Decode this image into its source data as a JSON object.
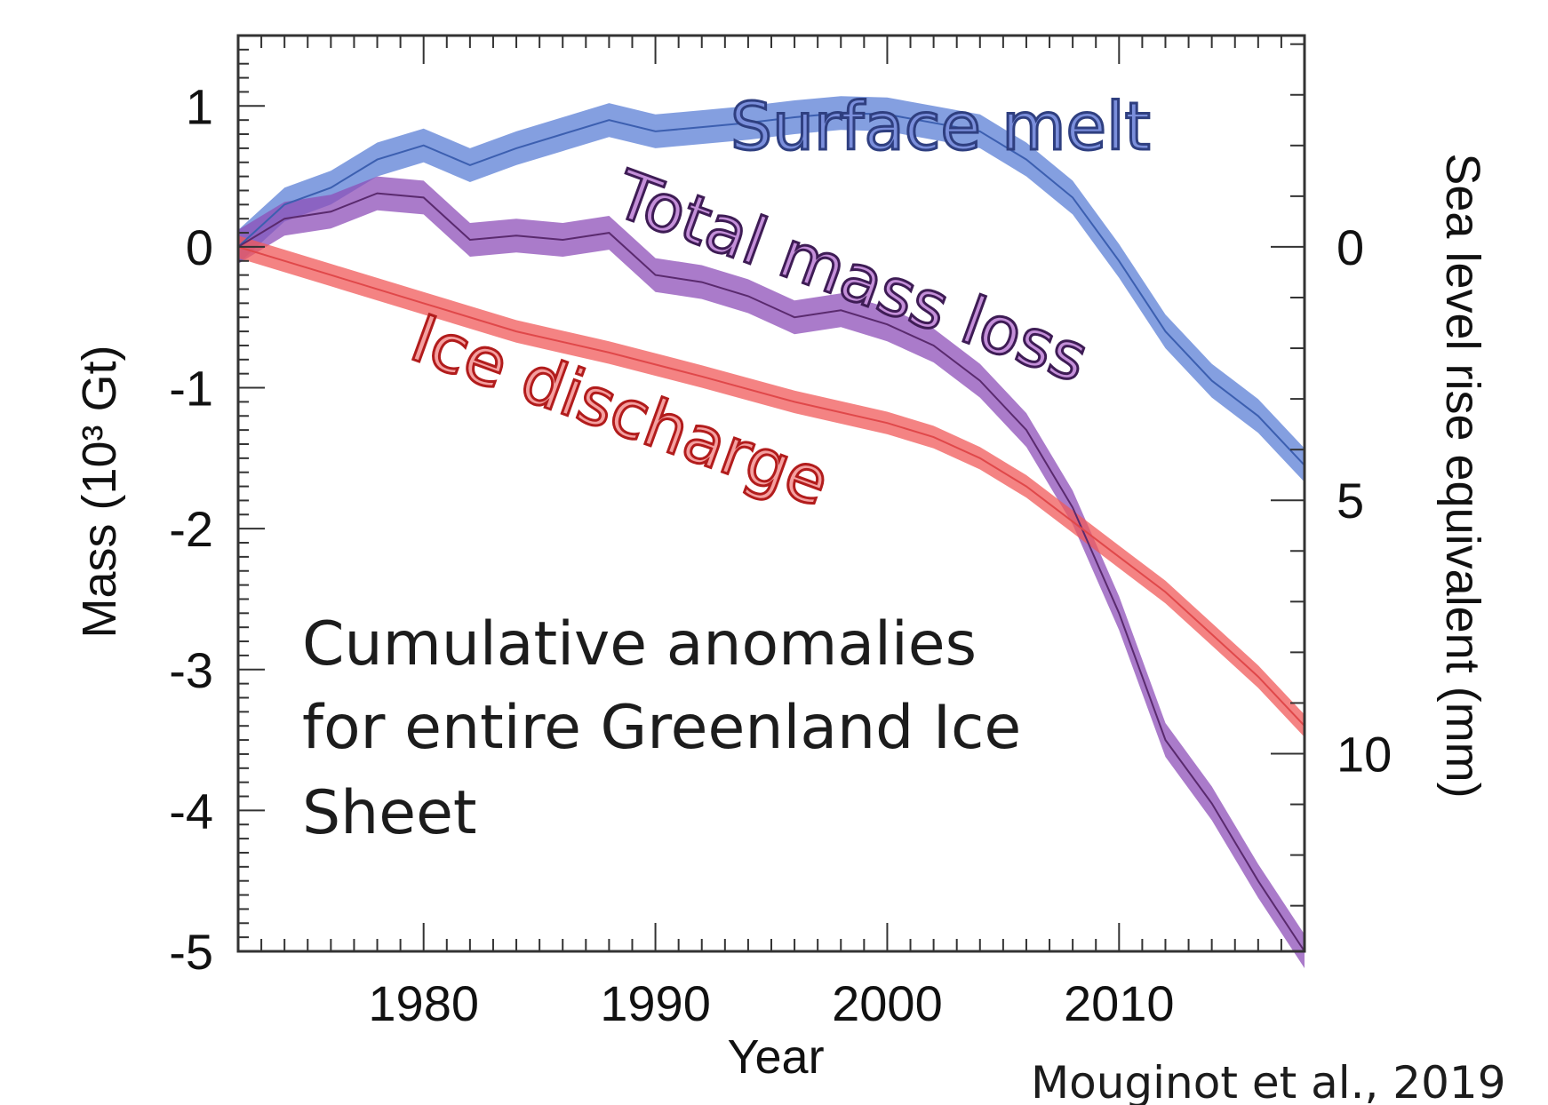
{
  "chart_data": {
    "type": "line",
    "title": "",
    "xlabel": "Year",
    "ylabel": "Mass (10³ Gt)",
    "y2label": "Sea level rise equivalent (mm)",
    "xlim": [
      1972,
      2018
    ],
    "ylim": [
      -5,
      1.5
    ],
    "x_ticks": [
      1980,
      1990,
      2000,
      2010
    ],
    "y_ticks": [
      1,
      0,
      -1,
      -2,
      -3,
      -4,
      -5
    ],
    "y_tick_labels": [
      "1",
      "0",
      "-1",
      "-2",
      "-3",
      "-4",
      "-5"
    ],
    "y2_ticks": [
      0,
      5,
      10
    ],
    "y2_tick_labels": [
      "0",
      "5",
      "10"
    ],
    "y2_mm_per_1000Gt": 2.78,
    "grid": false,
    "legend": "none (series labeled directly on the plot)",
    "series": [
      {
        "name": "Surface melt",
        "color": "#5b7fd6",
        "uncertainty_band": 0.12,
        "x": [
          1972,
          1974,
          1976,
          1978,
          1980,
          1982,
          1984,
          1986,
          1988,
          1990,
          1992,
          1994,
          1996,
          1998,
          2000,
          2002,
          2004,
          2006,
          2008,
          2010,
          2012,
          2014,
          2016,
          2018
        ],
        "y": [
          0.0,
          0.3,
          0.42,
          0.62,
          0.72,
          0.58,
          0.7,
          0.8,
          0.9,
          0.82,
          0.85,
          0.88,
          0.92,
          0.95,
          0.94,
          0.88,
          0.82,
          0.62,
          0.35,
          -0.1,
          -0.6,
          -0.95,
          -1.2,
          -1.55
        ]
      },
      {
        "name": "Total mass loss",
        "color": "#8e4fb8",
        "uncertainty_band": 0.12,
        "x": [
          1972,
          1974,
          1976,
          1978,
          1980,
          1982,
          1984,
          1986,
          1988,
          1990,
          1992,
          1994,
          1996,
          1998,
          2000,
          2002,
          2004,
          2006,
          2008,
          2010,
          2012,
          2014,
          2016,
          2018
        ],
        "y": [
          0.0,
          0.2,
          0.25,
          0.38,
          0.35,
          0.05,
          0.08,
          0.05,
          0.1,
          -0.2,
          -0.25,
          -0.35,
          -0.5,
          -0.45,
          -0.55,
          -0.7,
          -0.95,
          -1.3,
          -1.85,
          -2.6,
          -3.5,
          -3.95,
          -4.5,
          -5.0
        ]
      },
      {
        "name": "Ice discharge",
        "color": "#f05a5a",
        "uncertainty_band": 0.08,
        "x": [
          1972,
          1976,
          1980,
          1984,
          1988,
          1992,
          1996,
          2000,
          2002,
          2004,
          2006,
          2008,
          2010,
          2012,
          2014,
          2016,
          2018
        ],
        "y": [
          0.0,
          -0.2,
          -0.4,
          -0.6,
          -0.75,
          -0.92,
          -1.1,
          -1.25,
          -1.35,
          -1.5,
          -1.7,
          -1.95,
          -2.2,
          -2.45,
          -2.75,
          -3.05,
          -3.4
        ]
      }
    ],
    "annotations": [
      "Cumulative anomalies",
      "for entire Greenland Ice",
      "Sheet"
    ],
    "credit": "Mouginot et al., 2019"
  }
}
